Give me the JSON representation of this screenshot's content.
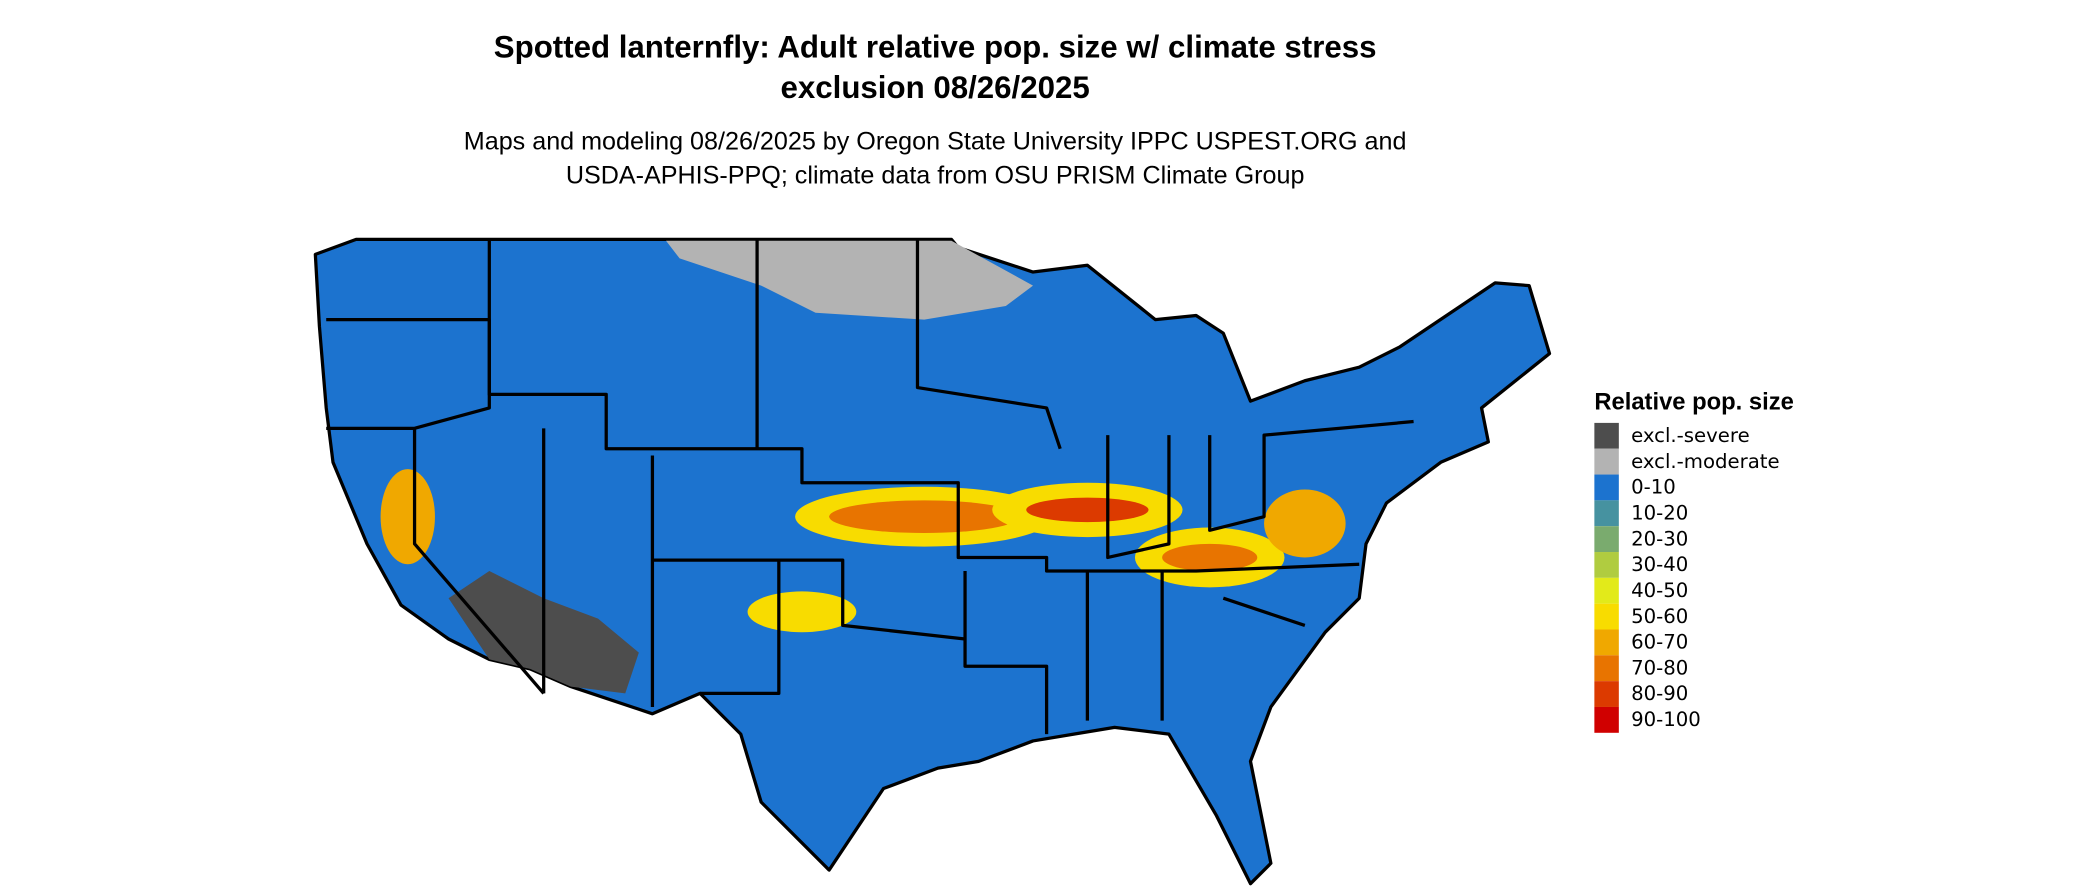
{
  "title": [
    "Spotted lanternfly: Adult relative pop. size w/ climate stress",
    "exclusion 08/26/2025"
  ],
  "subtitle": [
    "Maps and modeling 08/26/2025 by Oregon State University IPPC USPEST.ORG and",
    "USDA-APHIS-PPQ; climate data from OSU PRISM Climate Group"
  ],
  "legend": {
    "title": "Relative pop. size",
    "items": [
      {
        "label": "excl.-severe",
        "color": "#4d4d4d"
      },
      {
        "label": "excl.-moderate",
        "color": "#b3b3b3"
      },
      {
        "label": "0-10",
        "color": "#1c73cf"
      },
      {
        "label": "10-20",
        "color": "#4692a0"
      },
      {
        "label": "20-30",
        "color": "#7aab6e"
      },
      {
        "label": "30-40",
        "color": "#b0cc40"
      },
      {
        "label": "40-50",
        "color": "#e2ea1a"
      },
      {
        "label": "50-60",
        "color": "#f8dc00"
      },
      {
        "label": "60-70",
        "color": "#f0a800"
      },
      {
        "label": "70-80",
        "color": "#e87400"
      },
      {
        "label": "80-90",
        "color": "#dc3a00"
      },
      {
        "label": "90-100",
        "color": "#d00000"
      }
    ]
  }
}
